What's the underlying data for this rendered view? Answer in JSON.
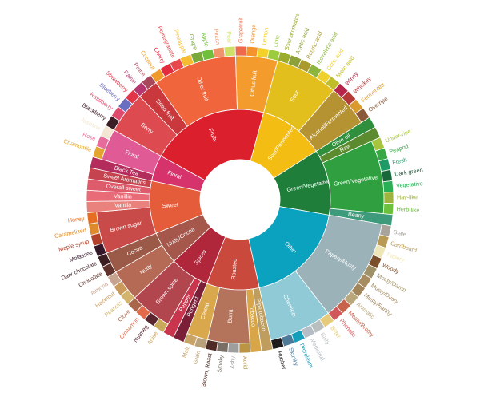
{
  "chart_data": {
    "type": "sunburst",
    "title": "",
    "center_label": "",
    "tiers": [
      {
        "name": "Floral",
        "color": "#d6336c",
        "label_color": "#ffffff",
        "children": [
          {
            "name": "Black Tea",
            "color": "#b42c5c",
            "leaves": []
          },
          {
            "name": "Floral",
            "color": "#e05a96",
            "leaves": [
              {
                "name": "Chamomile",
                "color": "#e3a52f"
              },
              {
                "name": "Rose",
                "color": "#e86c9b"
              },
              {
                "name": "Jasmine",
                "color": "#f3e6d2"
              }
            ]
          }
        ]
      },
      {
        "name": "Fruity",
        "color": "#db1f2d",
        "label_color": "#ffffff",
        "children": [
          {
            "name": "Berry",
            "color": "#dd4a4f",
            "leaves": [
              {
                "name": "Blackberry",
                "color": "#3b1d26"
              },
              {
                "name": "Raspberry",
                "color": "#e24a6d"
              },
              {
                "name": "Blueberry",
                "color": "#6b6dc1"
              },
              {
                "name": "Strawberry",
                "color": "#e1364a"
              }
            ]
          },
          {
            "name": "Dried fruit",
            "color": "#c9383c",
            "leaves": [
              {
                "name": "Raisin",
                "color": "#b5366e"
              },
              {
                "name": "Prune",
                "color": "#a9475b"
              }
            ]
          },
          {
            "name": "Other fruit",
            "color": "#f0653b",
            "leaves": [
              {
                "name": "Coconut",
                "color": "#ef9b2c"
              },
              {
                "name": "Cherry",
                "color": "#e42b3d"
              },
              {
                "name": "Pomegranate",
                "color": "#e6484e"
              },
              {
                "name": "Pineapple",
                "color": "#f3bc31"
              },
              {
                "name": "Grape",
                "color": "#7aa93b"
              },
              {
                "name": "Apple",
                "color": "#6fbf3a"
              },
              {
                "name": "Peach",
                "color": "#f0956b"
              },
              {
                "name": "Pear",
                "color": "#cfe06a"
              }
            ]
          },
          {
            "name": "Citrus fruit",
            "color": "#f39b2c",
            "leaves": [
              {
                "name": "Grapefruit",
                "color": "#ee6a4a"
              },
              {
                "name": "Orange",
                "color": "#f5922c"
              },
              {
                "name": "Lemon",
                "color": "#f3d129"
              },
              {
                "name": "Lime",
                "color": "#9ccc3d"
              }
            ]
          }
        ]
      },
      {
        "name": "Sour/Fermented",
        "color": "#f3bd14",
        "label_color": "#ffffff",
        "children": [
          {
            "name": "Sour",
            "color": "#e3bf1d",
            "leaves": [
              {
                "name": "Sour aromatics",
                "color": "#9bab2b"
              },
              {
                "name": "Acetic acid",
                "color": "#8ea03a"
              },
              {
                "name": "Butyric acid",
                "color": "#aa9a2d"
              },
              {
                "name": "Isovaleric acid",
                "color": "#8db53e"
              },
              {
                "name": "Citric acid",
                "color": "#eed12b"
              },
              {
                "name": "Malic acid",
                "color": "#c0bd2b"
              }
            ]
          },
          {
            "name": "Alcohol/Fermented",
            "color": "#b59232",
            "leaves": [
              {
                "name": "Winey",
                "color": "#b5264a"
              },
              {
                "name": "Whiskey",
                "color": "#b33a37"
              },
              {
                "name": "Fermented",
                "color": "#d99b2d"
              },
              {
                "name": "Overripe",
                "color": "#8a5a3b"
              }
            ]
          }
        ]
      },
      {
        "name": "Green/Vegetative",
        "color": "#1f7f3a",
        "label_color": "#ffffff",
        "children": [
          {
            "name": "Olive oil",
            "color": "#2f8f3d",
            "leaves": []
          },
          {
            "name": "Raw",
            "color": "#5c8a2e",
            "leaves": []
          },
          {
            "name": "Green/Vegetative",
            "color": "#2f9f3f",
            "leaves": [
              {
                "name": "Under-ripe",
                "color": "#a7c43e"
              },
              {
                "name": "Peapod",
                "color": "#38a845"
              },
              {
                "name": "Fresh",
                "color": "#1f9a66"
              },
              {
                "name": "Dark green",
                "color": "#18683a"
              },
              {
                "name": "Vegetative",
                "color": "#2aae56"
              },
              {
                "name": "Hay-like",
                "color": "#a0b33c"
              },
              {
                "name": "Herb-like",
                "color": "#6dbf3e"
              }
            ]
          },
          {
            "name": "Beany",
            "color": "#3d9a7a",
            "leaves": []
          }
        ]
      },
      {
        "name": "Other",
        "color": "#0aa2bf",
        "label_color": "#ffffff",
        "children": [
          {
            "name": "Papery/Musty",
            "color": "#9ab2b8",
            "leaves": [
              {
                "name": "Stale",
                "color": "#a9a49b"
              },
              {
                "name": "Cardboard",
                "color": "#b89a55"
              },
              {
                "name": "Papery",
                "color": "#efe6b8"
              },
              {
                "name": "Woody",
                "color": "#7b4f2c"
              },
              {
                "name": "Moldy/Damp",
                "color": "#9f9268"
              },
              {
                "name": "Musty/Dusty",
                "color": "#a68c5f"
              },
              {
                "name": "Musty/Earthy",
                "color": "#a1855b"
              },
              {
                "name": "Animalic",
                "color": "#b9a77b"
              },
              {
                "name": "Meaty/Brothy",
                "color": "#c6634a"
              },
              {
                "name": "Phenolic",
                "color": "#d1575a"
              }
            ]
          },
          {
            "name": "Chemical",
            "color": "#8fcad6",
            "leaves": [
              {
                "name": "Bitter",
                "color": "#e6cb7a"
              },
              {
                "name": "Salty",
                "color": "#b9bfbf"
              },
              {
                "name": "Medicinal",
                "color": "#b5bec6"
              },
              {
                "name": "Petroleum",
                "color": "#159fba"
              },
              {
                "name": "Skunky",
                "color": "#4e7a99"
              },
              {
                "name": "Rubber",
                "color": "#1d1b1b"
              }
            ]
          }
        ]
      },
      {
        "name": "Roasted",
        "color": "#c9493c",
        "label_color": "#ffffff",
        "children": [
          {
            "name": "Pipe tobacco",
            "color": "#be9d5e",
            "leaves": []
          },
          {
            "name": "Tobacco",
            "color": "#d8a649",
            "leaves": []
          },
          {
            "name": "Burnt",
            "color": "#b4735b",
            "leaves": [
              {
                "name": "Acrid",
                "color": "#bb9444"
              },
              {
                "name": "Ashy",
                "color": "#9e9e9e"
              },
              {
                "name": "Smoky",
                "color": "#7a6f66"
              },
              {
                "name": "Brown, Roast",
                "color": "#4d2b24"
              }
            ]
          },
          {
            "name": "Cereal",
            "color": "#d9a74c",
            "leaves": [
              {
                "name": "Grain",
                "color": "#b9a27a"
              },
              {
                "name": "Malt",
                "color": "#c9a366"
              }
            ]
          }
        ]
      },
      {
        "name": "Spices",
        "color": "#b0263a",
        "label_color": "#ffffff",
        "children": [
          {
            "name": "Pungent",
            "color": "#7a1f37",
            "leaves": []
          },
          {
            "name": "Pepper",
            "color": "#c8354d",
            "leaves": []
          },
          {
            "name": "Brown spice",
            "color": "#b2464e",
            "leaves": [
              {
                "name": "Anise",
                "color": "#c9a95a"
              },
              {
                "name": "Nutmeg",
                "color": "#5a2630"
              },
              {
                "name": "Cinnamon",
                "color": "#e16a4a"
              },
              {
                "name": "Clove",
                "color": "#a9664b"
              }
            ]
          }
        ]
      },
      {
        "name": "Nutty/Cocoa",
        "color": "#a5574b",
        "label_color": "#ffffff",
        "children": [
          {
            "name": "Nutty",
            "color": "#b56a55",
            "leaves": [
              {
                "name": "Peanuts",
                "color": "#d3b46e"
              },
              {
                "name": "Hazelnut",
                "color": "#c99a5c"
              },
              {
                "name": "Almond",
                "color": "#c7a48f"
              }
            ]
          },
          {
            "name": "Cocoa",
            "color": "#9a5a47",
            "leaves": [
              {
                "name": "Chocolate",
                "color": "#61322c"
              },
              {
                "name": "Dark chocolate",
                "color": "#3c1f22"
              }
            ]
          }
        ]
      },
      {
        "name": "Sweet",
        "color": "#e45c3a",
        "label_color": "#ffffff",
        "children": [
          {
            "name": "Brown sugar",
            "color": "#c94b49",
            "leaves": [
              {
                "name": "Molasses",
                "color": "#33182a"
              },
              {
                "name": "Maple syrup",
                "color": "#b2402d"
              },
              {
                "name": "Caramelized",
                "color": "#dc8a2b"
              },
              {
                "name": "Honey",
                "color": "#e66d24"
              }
            ]
          },
          {
            "name": "Vanilla",
            "color": "#e9827c",
            "leaves": []
          },
          {
            "name": "Vanillin",
            "color": "#ea6b78",
            "leaves": []
          },
          {
            "name": "Overall sweet",
            "color": "#dd5b6a",
            "leaves": []
          },
          {
            "name": "Sweet Aromatics",
            "color": "#c4434f",
            "leaves": []
          }
        ]
      }
    ]
  }
}
